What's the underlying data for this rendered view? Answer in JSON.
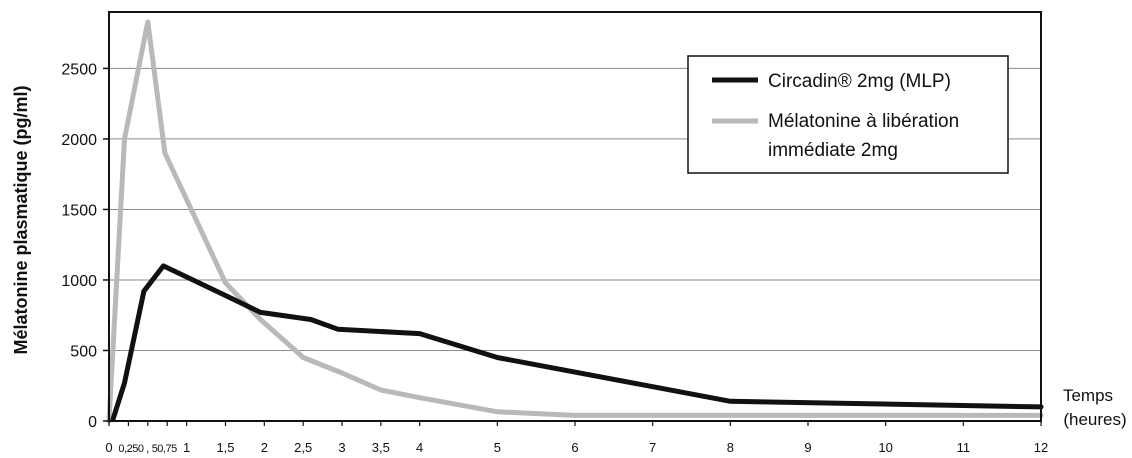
{
  "chart_data": {
    "type": "line",
    "ylabel": "Mélatonine plasmatique (pg/ml)",
    "xlabel_line1": "Temps",
    "xlabel_line2": "(heures)",
    "xlim": [
      0,
      12
    ],
    "ylim": [
      0,
      2900
    ],
    "grid": "horizontal",
    "legend_position": "top-right",
    "x_ticks": [
      0,
      0.25,
      0.5,
      0.75,
      1,
      1.5,
      2,
      2.5,
      3,
      3.5,
      4,
      5,
      6,
      7,
      8,
      9,
      10,
      11,
      12
    ],
    "x_tick_labels": [
      "0",
      "0,25",
      "0,5",
      "0,75",
      "1",
      "1,5",
      "2",
      "2,5",
      "3",
      "3,5",
      "4",
      "5",
      "6",
      "7",
      "8",
      "9",
      "10",
      "11",
      "12"
    ],
    "y_ticks": [
      0,
      500,
      1000,
      1500,
      2000,
      2500
    ],
    "y_tick_labels": [
      "0",
      "500",
      "1000",
      "1500",
      "2000",
      "2500"
    ],
    "series": [
      {
        "name": "Circadin® 2mg (MLP)",
        "color": "#111111",
        "x": [
          0.05,
          0.2,
          0.45,
          0.7,
          1.5,
          1.95,
          2.6,
          2.95,
          4,
          5,
          8,
          12
        ],
        "y": [
          10,
          270,
          920,
          1100,
          890,
          770,
          720,
          650,
          620,
          450,
          140,
          100
        ]
      },
      {
        "name": "Mélatonine à libération immédiate 2mg",
        "name_line1": "Mélatonine à libération",
        "name_line2": "immédiate 2mg",
        "color": "#b9b9b9",
        "x": [
          0,
          0.2,
          0.5,
          0.72,
          1.5,
          1.95,
          2.5,
          3,
          3.5,
          4,
          5,
          6,
          8,
          12
        ],
        "y": [
          0,
          2000,
          2830,
          1900,
          980,
          720,
          450,
          340,
          220,
          165,
          65,
          40,
          40,
          40
        ]
      }
    ]
  }
}
